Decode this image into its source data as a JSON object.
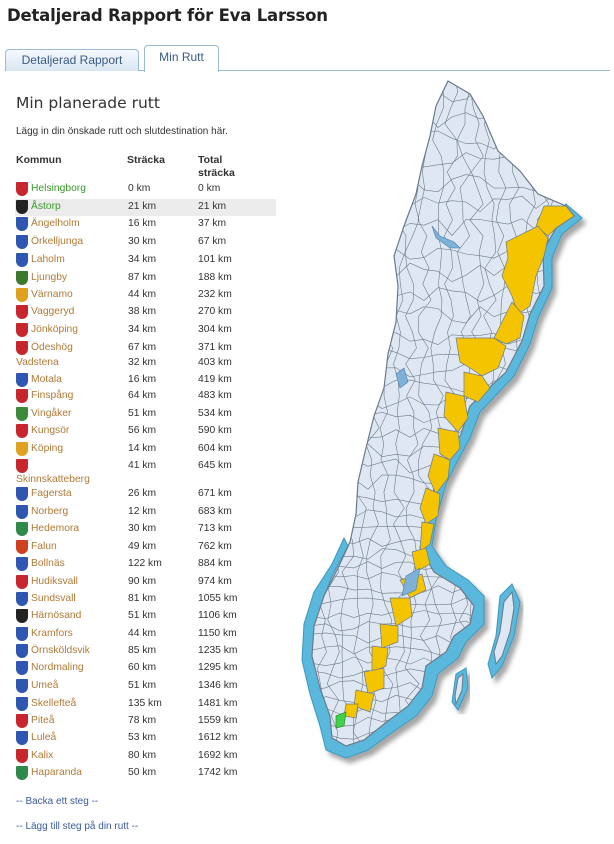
{
  "header": {
    "title": "Detaljerad Rapport för",
    "user_name": "Eva Larsson"
  },
  "tabs": [
    {
      "label": "Detaljerad Rapport"
    },
    {
      "label": "Min Rutt"
    }
  ],
  "main": {
    "title": "Min planerade rutt",
    "intro": "Lägg in din önskade rutt och slutdestination här.",
    "columns": {
      "kommun": "Kommun",
      "stracka": "Sträcka",
      "total": "Total sträcka"
    },
    "rows": [
      {
        "name": "Helsingborg",
        "dist": "0 km",
        "total": "0 km",
        "color": "#c8262e"
      },
      {
        "name": "Åstorp",
        "dist": "21 km",
        "total": "21 km",
        "color": "#222222"
      },
      {
        "name": "Ängelholm",
        "dist": "16 km",
        "total": "37 km",
        "color": "#2f56b0"
      },
      {
        "name": "Örkelljunga",
        "dist": "30 km",
        "total": "67 km",
        "color": "#2f56b0"
      },
      {
        "name": "Laholm",
        "dist": "34 km",
        "total": "101 km",
        "color": "#2f56b0"
      },
      {
        "name": "Ljungby",
        "dist": "87 km",
        "total": "188 km",
        "color": "#3a7a2a"
      },
      {
        "name": "Värnamo",
        "dist": "44 km",
        "total": "232 km",
        "color": "#e0a020"
      },
      {
        "name": "Vaggeryd",
        "dist": "38 km",
        "total": "270 km",
        "color": "#c8262e"
      },
      {
        "name": "Jönköping",
        "dist": "34 km",
        "total": "304 km",
        "color": "#c8262e"
      },
      {
        "name": "Ödeshög",
        "dist": "67 km",
        "total": "371 km",
        "color": "#c8262e"
      },
      {
        "name": "Vadstena",
        "dist": "32 km",
        "total": "403 km",
        "color": ""
      },
      {
        "name": "Motala",
        "dist": "16 km",
        "total": "419 km",
        "color": "#2f56b0"
      },
      {
        "name": "Finspång",
        "dist": "64 km",
        "total": "483 km",
        "color": "#c8262e"
      },
      {
        "name": "Vingåker",
        "dist": "51 km",
        "total": "534 km",
        "color": "#3a8a3a"
      },
      {
        "name": "Kungsör",
        "dist": "56 km",
        "total": "590 km",
        "color": "#c8262e"
      },
      {
        "name": "Köping",
        "dist": "14 km",
        "total": "604 km",
        "color": "#e0a020"
      },
      {
        "name": "Skinnskatteberg",
        "dist": "41 km",
        "total": "645 km",
        "color": "#c8262e"
      },
      {
        "name": "Fagersta",
        "dist": "26 km",
        "total": "671 km",
        "color": "#2f56b0"
      },
      {
        "name": "Norberg",
        "dist": "12 km",
        "total": "683 km",
        "color": "#2f56b0"
      },
      {
        "name": "Hedemora",
        "dist": "30 km",
        "total": "713 km",
        "color": "#2f8a4a"
      },
      {
        "name": "Falun",
        "dist": "49 km",
        "total": "762 km",
        "color": "#d04020"
      },
      {
        "name": "Bollnäs",
        "dist": "122 km",
        "total": "884 km",
        "color": "#2f56b0"
      },
      {
        "name": "Hudiksvall",
        "dist": "90 km",
        "total": "974 km",
        "color": "#c8262e"
      },
      {
        "name": "Sundsvall",
        "dist": "81 km",
        "total": "1055 km",
        "color": "#2f56b0"
      },
      {
        "name": "Härnösand",
        "dist": "51 km",
        "total": "1106 km",
        "color": "#222222"
      },
      {
        "name": "Kramfors",
        "dist": "44 km",
        "total": "1150 km",
        "color": "#2f56b0"
      },
      {
        "name": "Örnsköldsvik",
        "dist": "85 km",
        "total": "1235 km",
        "color": "#2f56b0"
      },
      {
        "name": "Nordmaling",
        "dist": "60 km",
        "total": "1295 km",
        "color": "#2f56b0"
      },
      {
        "name": "Umeå",
        "dist": "51 km",
        "total": "1346 km",
        "color": "#2f56b0"
      },
      {
        "name": "Skellefteå",
        "dist": "135 km",
        "total": "1481 km",
        "color": "#2f56b0"
      },
      {
        "name": "Piteå",
        "dist": "78 km",
        "total": "1559 km",
        "color": "#c8262e"
      },
      {
        "name": "Luleå",
        "dist": "53 km",
        "total": "1612 km",
        "color": "#2f56b0"
      },
      {
        "name": "Kalix",
        "dist": "80 km",
        "total": "1692 km",
        "color": "#c8262e"
      },
      {
        "name": "Haparanda",
        "dist": "50 km",
        "total": "1742 km",
        "color": "#2f8a4a"
      }
    ],
    "links": {
      "back": "-- Backa ett steg --",
      "add": "-- Lägg till steg på din rutt --"
    }
  },
  "map": {
    "land_color": "#dfe8f2",
    "route_color": "#f5c400",
    "start_color": "#3fd24a",
    "sea_color": "#5ab8dc"
  }
}
